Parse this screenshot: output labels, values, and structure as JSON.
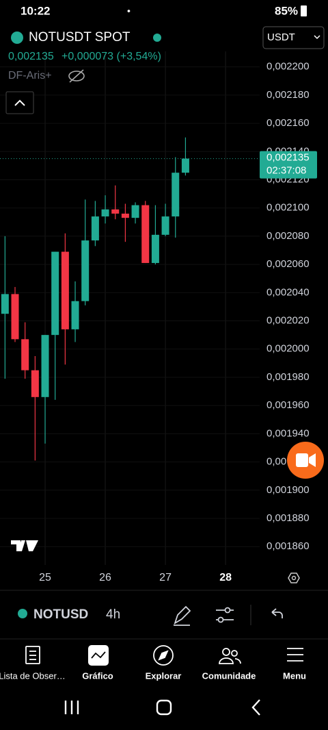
{
  "status_bar": {
    "time": "10:22",
    "battery": "85%"
  },
  "header": {
    "symbol": "NOTUSDT SPOT",
    "price": "0,002135",
    "change": "+0,000073 (+3,54%)",
    "indicator": "DF-Aris+",
    "currency": "USDT"
  },
  "price_tag": {
    "price": "0,002135",
    "countdown": "02:37:08"
  },
  "toolbar": {
    "symbol": "NOTUSD",
    "interval": "4h"
  },
  "nav": [
    "Lista de Obser…",
    "Gráfico",
    "Explorar",
    "Comunidade",
    "Menu"
  ],
  "chart_data": {
    "type": "candlestick",
    "open": [
      0.002025,
      0.002039,
      0.002007,
      0.001985,
      0.001966,
      0.00201,
      0.002069,
      0.002014,
      0.002034,
      0.002077,
      0.002094,
      0.002099,
      0.002096,
      0.002093,
      0.002102,
      0.002061,
      0.002081,
      0.002094,
      0.002125
    ],
    "high": [
      0.00208,
      0.002044,
      0.002019,
      0.001995,
      0.00201,
      0.002069,
      0.002082,
      0.002048,
      0.002106,
      0.002105,
      0.002109,
      0.002116,
      0.002103,
      0.002104,
      0.002105,
      0.002102,
      0.002103,
      0.002136,
      0.00215
    ],
    "low": [
      0.001979,
      0.002005,
      0.001979,
      0.001921,
      0.001933,
      0.001964,
      0.001989,
      0.002005,
      0.002031,
      0.002073,
      0.002089,
      0.002092,
      0.002076,
      0.002089,
      0.002061,
      0.00206,
      0.00208,
      0.002079,
      0.002123
    ],
    "close": [
      0.002039,
      0.002007,
      0.001985,
      0.001966,
      0.00201,
      0.002069,
      0.002014,
      0.002034,
      0.002077,
      0.002094,
      0.002099,
      0.002096,
      0.002093,
      0.002102,
      0.002061,
      0.002081,
      0.002094,
      0.002125,
      0.002135
    ],
    "up_color": "#22ab94",
    "down_color": "#f23645",
    "ylim": [
      0.001847,
      0.002211
    ],
    "yticks": [
      {
        "value": 0.0022,
        "label": "0,002200"
      },
      {
        "value": 0.00218,
        "label": "0,002180"
      },
      {
        "value": 0.00216,
        "label": "0,002160"
      },
      {
        "value": 0.00214,
        "label": "0,002140"
      },
      {
        "value": 0.00212,
        "label": "0,002120"
      },
      {
        "value": 0.0021,
        "label": "0,002100"
      },
      {
        "value": 0.00208,
        "label": "0,002080"
      },
      {
        "value": 0.00206,
        "label": "0,002060"
      },
      {
        "value": 0.00204,
        "label": "0,002040"
      },
      {
        "value": 0.00202,
        "label": "0,002020"
      },
      {
        "value": 0.002,
        "label": "0,002000"
      },
      {
        "value": 0.00198,
        "label": "0,001980"
      },
      {
        "value": 0.00196,
        "label": "0,001960"
      },
      {
        "value": 0.00194,
        "label": "0,001940"
      },
      {
        "value": 0.00192,
        "label": "0,00"
      },
      {
        "value": 0.0019,
        "label": "0,001900"
      },
      {
        "value": 0.00188,
        "label": "0,001880"
      },
      {
        "value": 0.00186,
        "label": "0,001860"
      }
    ],
    "xlim": [
      -0.5,
      25.4
    ],
    "xticks": [
      {
        "value": 4,
        "label": "25"
      },
      {
        "value": 10,
        "label": "26"
      },
      {
        "value": 16,
        "label": "27"
      },
      {
        "value": 22,
        "label": "28"
      }
    ],
    "grid": true
  }
}
